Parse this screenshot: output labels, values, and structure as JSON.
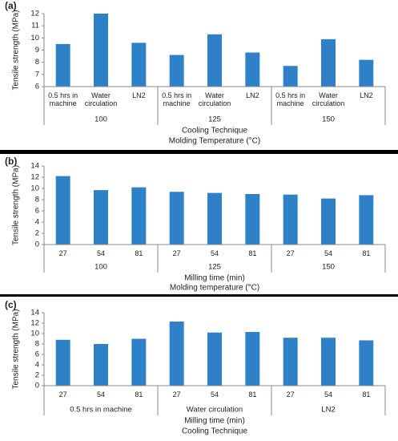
{
  "chart_data": [
    {
      "type": "bar",
      "panel": "(a)",
      "ylabel": "Tensile strength (MPa)",
      "xlabels": [
        "Cooling Technique",
        "Molding Temperature (°C)"
      ],
      "categories": [
        "0.5 hrs in machine",
        "Water circulation",
        "LN2",
        "0.5 hrs in machine",
        "Water circulation",
        "LN2",
        "0.5 hrs in machine",
        "Water circulation",
        "LN2"
      ],
      "groups": [
        "100",
        "125",
        "150"
      ],
      "values": [
        9.5,
        12.0,
        9.6,
        8.6,
        10.3,
        8.8,
        7.7,
        9.9,
        8.2
      ],
      "color": "#2f81c7",
      "ylim": [
        6,
        12
      ],
      "yticks": [
        6,
        7,
        8,
        9,
        10,
        11,
        12
      ]
    },
    {
      "type": "bar",
      "panel": "(b)",
      "ylabel": "Tensile strength (MPa)",
      "xlabels": [
        "Milling time (min)",
        "Molding temperature (°C)"
      ],
      "categories": [
        "27",
        "54",
        "81",
        "27",
        "54",
        "81",
        "27",
        "54",
        "81"
      ],
      "groups": [
        "100",
        "125",
        "150"
      ],
      "values": [
        12.2,
        9.7,
        10.2,
        9.4,
        9.2,
        9.0,
        8.9,
        8.2,
        8.8
      ],
      "color": "#2f81c7",
      "ylim": [
        0,
        14
      ],
      "yticks": [
        0,
        2,
        4,
        6,
        8,
        10,
        12,
        14
      ]
    },
    {
      "type": "bar",
      "panel": "(c)",
      "ylabel": "Tensile strength (MPa)",
      "xlabels": [
        "Milling time (min)",
        "Cooling Technique"
      ],
      "categories": [
        "27",
        "54",
        "81",
        "27",
        "54",
        "81",
        "27",
        "54",
        "81"
      ],
      "groups": [
        "0.5 hrs in machine",
        "Water circulation",
        "LN2"
      ],
      "values": [
        8.8,
        8.0,
        9.0,
        12.3,
        10.2,
        10.3,
        9.2,
        9.2,
        8.7
      ],
      "color": "#2f81c7",
      "ylim": [
        0,
        14
      ],
      "yticks": [
        0,
        2,
        4,
        6,
        8,
        10,
        12,
        14
      ]
    }
  ]
}
